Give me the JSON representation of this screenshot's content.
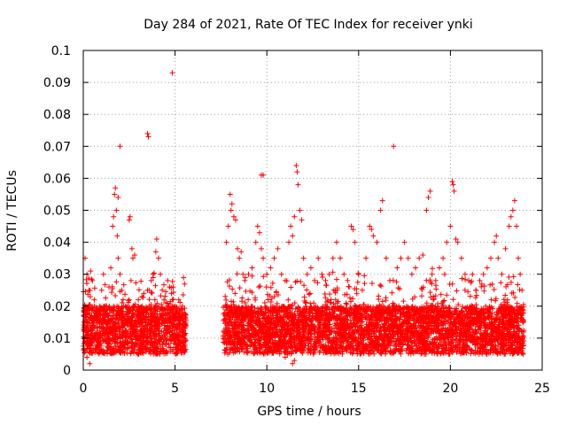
{
  "chart_data": {
    "type": "scatter",
    "title": "Day 284 of 2021, Rate Of TEC Index for receiver ynki",
    "xlabel": "GPS time / hours",
    "ylabel": "ROTI / TECUs",
    "xlim": [
      0,
      25
    ],
    "ylim": [
      0,
      0.1
    ],
    "xticks": [
      0,
      5,
      10,
      15,
      20,
      25
    ],
    "xtick_labels": [
      "0",
      "5",
      "10",
      "15",
      "20",
      "25"
    ],
    "yticks": [
      0,
      0.01,
      0.02,
      0.03,
      0.04,
      0.05,
      0.06,
      0.07,
      0.08,
      0.09,
      0.1
    ],
    "ytick_labels": [
      "0",
      "0.01",
      "0.02",
      "0.03",
      "0.04",
      "0.05",
      "0.06",
      "0.07",
      "0.08",
      "0.09",
      "0.1"
    ],
    "grid": true,
    "marker": "+",
    "color": "#ff0000",
    "series": [
      {
        "name": "ROTI",
        "points": [
          [
            0.1,
            0.035
          ],
          [
            0.2,
            0.03
          ],
          [
            0.3,
            0.025
          ],
          [
            0.5,
            0.028
          ],
          [
            0.6,
            0.022
          ],
          [
            0.8,
            0.018
          ],
          [
            0.9,
            0.02
          ],
          [
            1.0,
            0.025
          ],
          [
            1.1,
            0.03
          ],
          [
            1.2,
            0.02
          ],
          [
            1.3,
            0.015
          ],
          [
            1.4,
            0.026
          ],
          [
            1.5,
            0.032
          ],
          [
            1.6,
            0.045
          ],
          [
            1.65,
            0.048
          ],
          [
            1.7,
            0.055
          ],
          [
            1.75,
            0.057
          ],
          [
            1.8,
            0.05
          ],
          [
            1.85,
            0.042
          ],
          [
            1.9,
            0.035
          ],
          [
            2.0,
            0.03
          ],
          [
            2.1,
            0.025
          ],
          [
            2.2,
            0.02
          ],
          [
            2.3,
            0.02
          ],
          [
            2.5,
            0.022
          ],
          [
            2.6,
            0.028
          ],
          [
            2.7,
            0.035
          ],
          [
            2.8,
            0.036
          ],
          [
            3.0,
            0.022
          ],
          [
            3.1,
            0.018
          ],
          [
            3.2,
            0.02
          ],
          [
            3.3,
            0.024
          ],
          [
            3.5,
            0.025
          ],
          [
            3.6,
            0.02
          ],
          [
            3.7,
            0.028
          ],
          [
            3.8,
            0.03
          ],
          [
            3.9,
            0.022
          ],
          [
            4.0,
            0.02
          ],
          [
            4.2,
            0.03
          ],
          [
            4.3,
            0.025
          ],
          [
            4.4,
            0.022
          ],
          [
            4.6,
            0.028
          ],
          [
            4.7,
            0.026
          ],
          [
            4.8,
            0.024
          ],
          [
            4.9,
            0.026
          ],
          [
            5.0,
            0.02
          ],
          [
            5.2,
            0.022
          ],
          [
            5.4,
            0.02
          ],
          [
            0.35,
            0.002
          ],
          [
            0.2,
            0.004
          ],
          [
            2.0,
            0.07
          ],
          [
            3.5,
            0.074
          ],
          [
            3.55,
            0.073
          ],
          [
            4.0,
            0.041
          ],
          [
            2.5,
            0.047
          ],
          [
            2.55,
            0.048
          ],
          [
            4.85,
            0.093
          ],
          [
            1.9,
            0.054
          ],
          [
            4.1,
            0.035
          ],
          [
            3.95,
            0.037
          ],
          [
            2.65,
            0.038
          ],
          [
            0.4,
            0.031
          ],
          [
            7.8,
            0.04
          ],
          [
            7.9,
            0.045
          ],
          [
            8.0,
            0.055
          ],
          [
            8.05,
            0.05
          ],
          [
            8.1,
            0.052
          ],
          [
            8.2,
            0.048
          ],
          [
            8.3,
            0.047
          ],
          [
            8.4,
            0.038
          ],
          [
            8.5,
            0.035
          ],
          [
            8.6,
            0.037
          ],
          [
            8.7,
            0.03
          ],
          [
            8.8,
            0.028
          ],
          [
            9.0,
            0.03
          ],
          [
            9.2,
            0.032
          ],
          [
            9.4,
            0.04
          ],
          [
            9.5,
            0.045
          ],
          [
            9.6,
            0.043
          ],
          [
            9.7,
            0.038
          ],
          [
            9.8,
            0.035
          ],
          [
            10.0,
            0.03
          ],
          [
            10.2,
            0.032
          ],
          [
            10.4,
            0.035
          ],
          [
            10.6,
            0.038
          ],
          [
            10.8,
            0.03
          ],
          [
            11.0,
            0.028
          ],
          [
            11.2,
            0.04
          ],
          [
            11.3,
            0.045
          ],
          [
            11.4,
            0.042
          ],
          [
            11.5,
            0.048
          ],
          [
            11.6,
            0.064
          ],
          [
            11.65,
            0.062
          ],
          [
            11.7,
            0.058
          ],
          [
            11.8,
            0.05
          ],
          [
            12.0,
            0.035
          ],
          [
            12.2,
            0.03
          ],
          [
            12.4,
            0.032
          ],
          [
            12.6,
            0.028
          ],
          [
            12.8,
            0.035
          ],
          [
            13.0,
            0.03
          ],
          [
            13.2,
            0.028
          ],
          [
            13.4,
            0.03
          ],
          [
            13.6,
            0.035
          ],
          [
            13.8,
            0.04
          ],
          [
            14.0,
            0.035
          ],
          [
            14.2,
            0.03
          ],
          [
            14.4,
            0.028
          ],
          [
            14.6,
            0.045
          ],
          [
            14.8,
            0.04
          ],
          [
            15.0,
            0.03
          ],
          [
            15.2,
            0.025
          ],
          [
            15.4,
            0.035
          ],
          [
            15.6,
            0.045
          ],
          [
            15.8,
            0.042
          ],
          [
            16.0,
            0.04
          ],
          [
            16.2,
            0.05
          ],
          [
            16.3,
            0.053
          ],
          [
            16.5,
            0.035
          ],
          [
            16.7,
            0.028
          ],
          [
            16.9,
            0.07
          ],
          [
            17.1,
            0.032
          ],
          [
            17.3,
            0.035
          ],
          [
            17.5,
            0.04
          ],
          [
            17.7,
            0.035
          ],
          [
            17.9,
            0.03
          ],
          [
            18.1,
            0.032
          ],
          [
            18.3,
            0.035
          ],
          [
            18.5,
            0.036
          ],
          [
            18.7,
            0.05
          ],
          [
            18.8,
            0.054
          ],
          [
            18.9,
            0.056
          ],
          [
            19.0,
            0.03
          ],
          [
            19.2,
            0.028
          ],
          [
            19.4,
            0.032
          ],
          [
            19.6,
            0.035
          ],
          [
            19.8,
            0.04
          ],
          [
            20.0,
            0.045
          ],
          [
            20.1,
            0.059
          ],
          [
            20.15,
            0.058
          ],
          [
            20.2,
            0.056
          ],
          [
            20.3,
            0.041
          ],
          [
            20.4,
            0.04
          ],
          [
            20.6,
            0.035
          ],
          [
            20.8,
            0.03
          ],
          [
            21.0,
            0.028
          ],
          [
            21.2,
            0.03
          ],
          [
            21.4,
            0.025
          ],
          [
            21.6,
            0.028
          ],
          [
            21.8,
            0.03
          ],
          [
            22.0,
            0.032
          ],
          [
            22.2,
            0.035
          ],
          [
            22.4,
            0.04
          ],
          [
            22.5,
            0.042
          ],
          [
            22.6,
            0.035
          ],
          [
            22.8,
            0.03
          ],
          [
            23.0,
            0.038
          ],
          [
            23.2,
            0.045
          ],
          [
            23.3,
            0.048
          ],
          [
            23.4,
            0.05
          ],
          [
            23.5,
            0.053
          ],
          [
            23.6,
            0.045
          ],
          [
            23.7,
            0.035
          ],
          [
            23.8,
            0.03
          ],
          [
            23.9,
            0.025
          ],
          [
            11.4,
            0.002
          ],
          [
            11.5,
            0.003
          ],
          [
            11.0,
            0.004
          ],
          [
            9.8,
            0.061
          ],
          [
            9.7,
            0.061
          ],
          [
            15.7,
            0.044
          ],
          [
            14.7,
            0.044
          ],
          [
            11.9,
            0.047
          ]
        ],
        "band": {
          "segments": [
            [
              0.0,
              5.6
            ],
            [
              7.6,
              24.0
            ]
          ],
          "core_range": [
            0.005,
            0.02
          ],
          "count_per_hour": 260
        }
      }
    ]
  }
}
